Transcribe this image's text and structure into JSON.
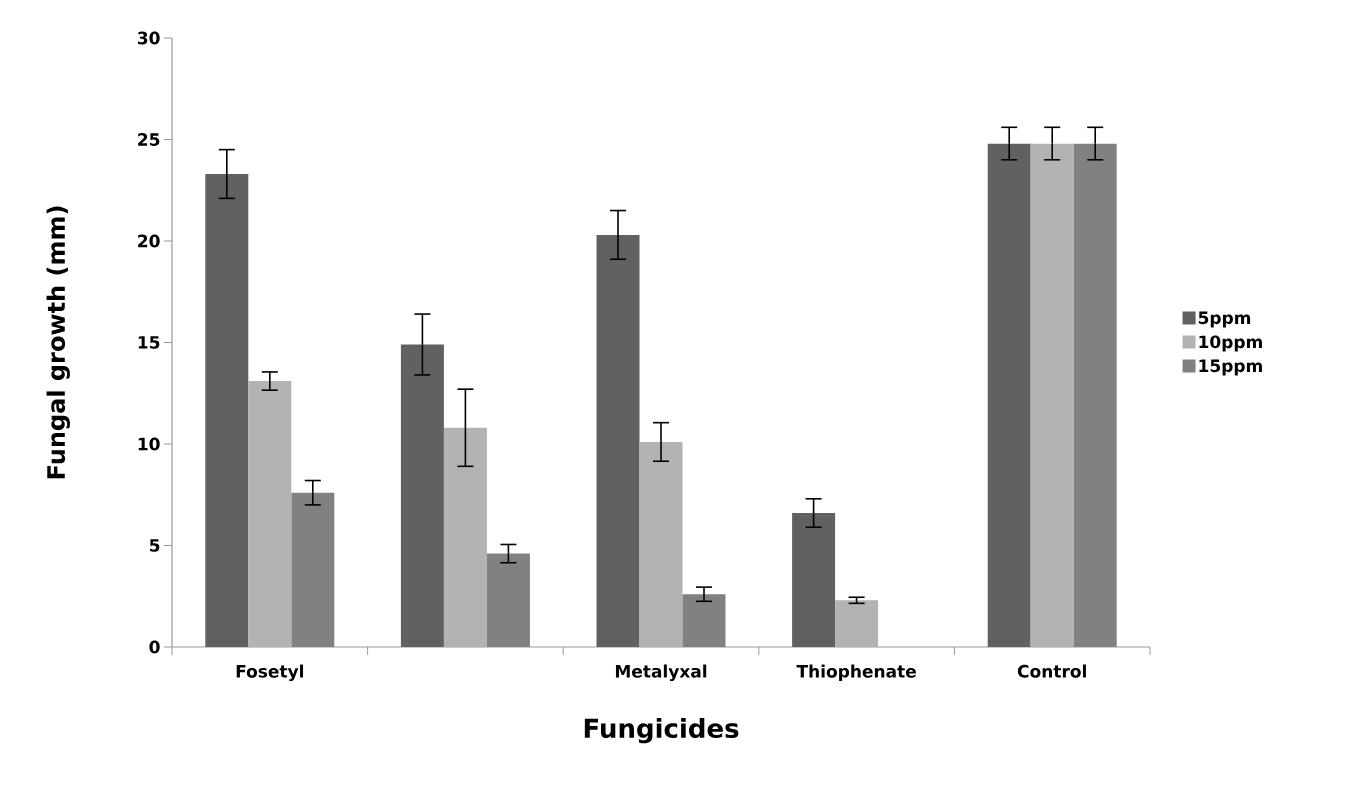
{
  "chart_data": {
    "type": "bar",
    "xlabel": "Fungicides",
    "ylabel": "Fungal growth (mm)",
    "categories": [
      "Fosetyl",
      null,
      "Metalyxal",
      "Thiophenate",
      "Control"
    ],
    "series": [
      {
        "name": "5ppm",
        "color": "#616161",
        "values": [
          23.3,
          14.9,
          20.3,
          6.6,
          24.8
        ],
        "errors": [
          1.2,
          1.5,
          1.2,
          0.7,
          0.8
        ]
      },
      {
        "name": "10ppm",
        "color": "#b3b3b3",
        "values": [
          13.1,
          10.8,
          10.1,
          2.3,
          24.8
        ],
        "errors": [
          0.45,
          1.9,
          0.95,
          0.15,
          0.8
        ]
      },
      {
        "name": "15ppm",
        "color": "#818181",
        "values": [
          7.6,
          4.6,
          2.6,
          null,
          24.8
        ],
        "errors": [
          0.6,
          0.45,
          0.35,
          null,
          0.8
        ]
      }
    ],
    "ylim": [
      0,
      30
    ],
    "yticks": [
      0,
      5,
      10,
      15,
      20,
      25,
      30
    ],
    "legend": "right",
    "grid": false
  }
}
